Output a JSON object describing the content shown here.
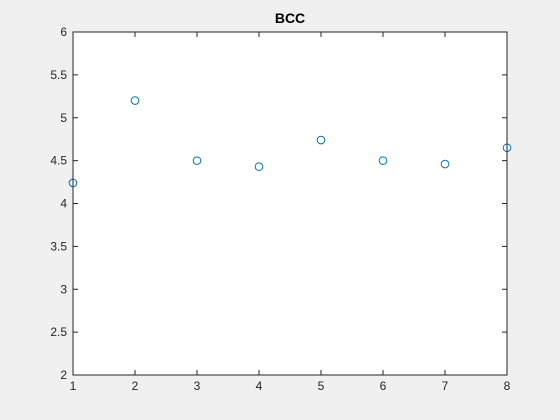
{
  "chart_data": {
    "type": "scatter",
    "title": "BCC",
    "xlabel": "",
    "ylabel": "",
    "xlim": [
      1,
      8
    ],
    "ylim": [
      2,
      6
    ],
    "xticks": [
      1,
      2,
      3,
      4,
      5,
      6,
      7,
      8
    ],
    "xtick_labels": [
      "1",
      "2",
      "3",
      "4",
      "5",
      "6",
      "7",
      "8"
    ],
    "yticks": [
      2,
      2.5,
      3,
      3.5,
      4,
      4.5,
      5,
      5.5,
      6
    ],
    "ytick_labels": [
      "2",
      "2.5",
      "3",
      "3.5",
      "4",
      "4.5",
      "5",
      "5.5",
      "6"
    ],
    "grid": false,
    "series": [
      {
        "marker": "open-circle",
        "color": "#0072BD",
        "x": [
          1,
          2,
          3,
          4,
          5,
          6,
          7,
          8
        ],
        "y": [
          4.24,
          5.2,
          4.5,
          4.43,
          4.74,
          4.5,
          4.46,
          4.65
        ]
      }
    ]
  },
  "colors": {
    "figure_background": "#f0f0f0",
    "axes_background": "#ffffff",
    "axis_line": "#262626",
    "marker": "#0072BD"
  }
}
